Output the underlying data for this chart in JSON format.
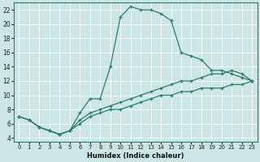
{
  "xlabel": "Humidex (Indice chaleur)",
  "bg_color": "#cce5e5",
  "grid_color": "#ffffff",
  "line_color": "#2d7d6e",
  "xlim": [
    -0.5,
    23.5
  ],
  "ylim": [
    3.5,
    23
  ],
  "yticks": [
    4,
    6,
    8,
    10,
    12,
    14,
    16,
    18,
    20,
    22
  ],
  "xticks": [
    0,
    1,
    2,
    3,
    4,
    5,
    6,
    7,
    8,
    9,
    10,
    11,
    12,
    13,
    14,
    15,
    16,
    17,
    18,
    19,
    20,
    21,
    22,
    23
  ],
  "series": [
    {
      "x": [
        0,
        1,
        2,
        3,
        4,
        5,
        6,
        7,
        8,
        9,
        10,
        11,
        12,
        13,
        14,
        15,
        16,
        17,
        18,
        19,
        20,
        21,
        22,
        23
      ],
      "y": [
        7,
        6.5,
        5.5,
        5.0,
        4.5,
        5.0,
        7.5,
        9.5,
        9.5,
        14,
        21,
        22.5,
        22,
        22,
        21.5,
        20.5,
        16,
        15.5,
        15,
        13.5,
        13.5,
        13,
        12.5,
        12
      ]
    },
    {
      "x": [
        0,
        1,
        2,
        3,
        4,
        5,
        6,
        7,
        8,
        9,
        10,
        11,
        12,
        13,
        14,
        15,
        16,
        17,
        18,
        19,
        20,
        21,
        22,
        23
      ],
      "y": [
        7,
        6.5,
        5.5,
        5.0,
        4.5,
        5.0,
        6.5,
        7.5,
        8,
        8.5,
        9,
        9.5,
        10,
        10.5,
        11,
        11.5,
        12,
        12,
        12.5,
        13,
        13,
        13.5,
        13,
        12
      ]
    },
    {
      "x": [
        0,
        1,
        2,
        3,
        4,
        5,
        6,
        7,
        8,
        9,
        10,
        11,
        12,
        13,
        14,
        15,
        16,
        17,
        18,
        19,
        20,
        21,
        22,
        23
      ],
      "y": [
        7,
        6.5,
        5.5,
        5.0,
        4.5,
        5.0,
        6,
        7,
        7.5,
        8,
        8,
        8.5,
        9,
        9.5,
        10,
        10,
        10.5,
        10.5,
        11,
        11,
        11,
        11.5,
        11.5,
        12
      ]
    }
  ]
}
